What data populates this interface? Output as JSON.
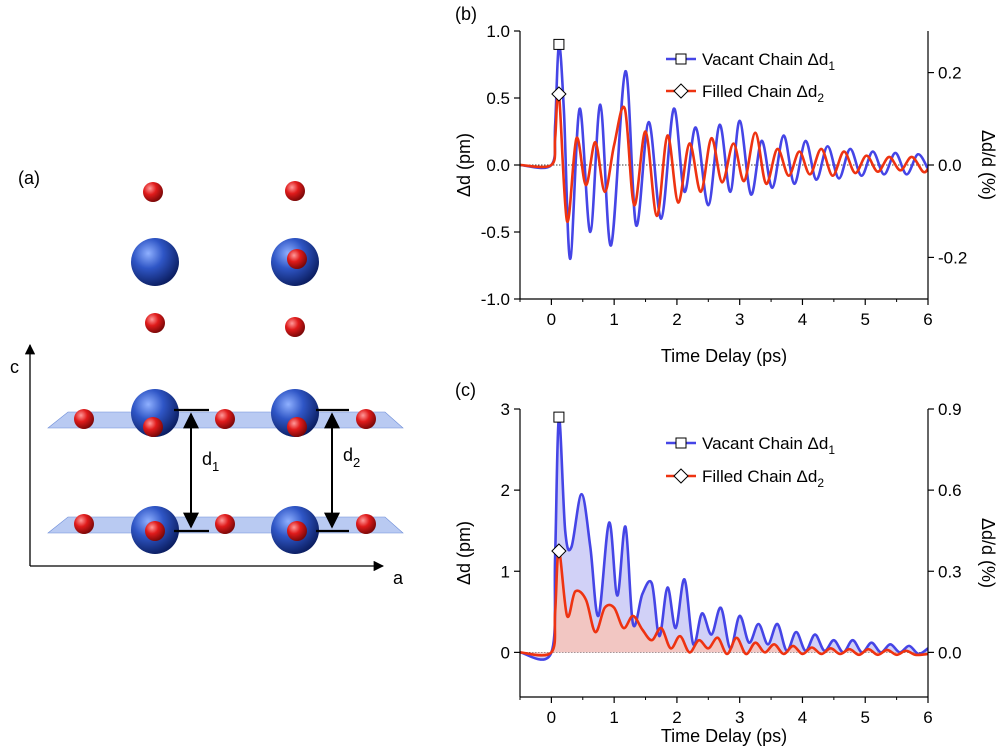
{
  "structure": {
    "panel_label": "(a)",
    "axis_c": "c",
    "axis_a": "a",
    "label_d1": {
      "main": "d",
      "sub": "1"
    },
    "label_d2": {
      "main": "d",
      "sub": "2"
    },
    "colors": {
      "big_atom": "#2b4fb5",
      "small_atom": "#e01b1b",
      "plane": "#7f9ee8"
    }
  },
  "chart_data": [
    {
      "panel": "(b)",
      "type": "line",
      "xlabel": "Time Delay (ps)",
      "ylabel": "Δd (pm)",
      "ylabel_right": "Δd/d (%)",
      "xlim": [
        -0.5,
        6
      ],
      "ylim": [
        -1.0,
        1.0
      ],
      "ylim_right": [
        -0.29,
        0.29
      ],
      "xticks": [
        "0",
        "1",
        "2",
        "3",
        "4",
        "5",
        "6"
      ],
      "yticks": [
        "-1.0",
        "-0.5",
        "0.0",
        "0.5",
        "1.0"
      ],
      "yticks_right": [
        "-0.2",
        "0.0",
        "0.2"
      ],
      "yticks_right_values": [
        -0.2,
        0.0,
        0.2
      ],
      "zero_line": true,
      "fill": false,
      "series": [
        {
          "name": "Vacant Chain Δd",
          "subscript": "1",
          "color": "#4545e6",
          "marker": "square",
          "marker_point": [
            0.12,
            0.9
          ],
          "points": [
            [
              -0.5,
              0
            ],
            [
              0.0,
              0.0
            ],
            [
              0.06,
              0.3
            ],
            [
              0.12,
              0.9
            ],
            [
              0.2,
              0.4
            ],
            [
              0.3,
              -0.7
            ],
            [
              0.45,
              0.42
            ],
            [
              0.62,
              -0.5
            ],
            [
              0.78,
              0.45
            ],
            [
              0.95,
              -0.6
            ],
            [
              1.18,
              0.7
            ],
            [
              1.35,
              -0.45
            ],
            [
              1.55,
              0.32
            ],
            [
              1.75,
              -0.4
            ],
            [
              1.95,
              0.42
            ],
            [
              2.12,
              -0.2
            ],
            [
              2.3,
              0.28
            ],
            [
              2.5,
              -0.3
            ],
            [
              2.68,
              0.3
            ],
            [
              2.85,
              -0.2
            ],
            [
              3.0,
              0.33
            ],
            [
              3.18,
              -0.22
            ],
            [
              3.35,
              0.18
            ],
            [
              3.52,
              -0.17
            ],
            [
              3.7,
              0.22
            ],
            [
              3.87,
              -0.14
            ],
            [
              4.05,
              0.18
            ],
            [
              4.22,
              -0.11
            ],
            [
              4.4,
              0.14
            ],
            [
              4.58,
              -0.1
            ],
            [
              4.76,
              0.12
            ],
            [
              4.94,
              -0.08
            ],
            [
              5.12,
              0.1
            ],
            [
              5.3,
              -0.07
            ],
            [
              5.48,
              0.09
            ],
            [
              5.66,
              -0.07
            ],
            [
              5.84,
              0.08
            ],
            [
              6.0,
              -0.03
            ]
          ]
        },
        {
          "name": "Filled Chain Δd",
          "subscript": "2",
          "color": "#ee3311",
          "marker": "diamond",
          "marker_point": [
            0.12,
            0.53
          ],
          "points": [
            [
              -0.5,
              0
            ],
            [
              0.0,
              0.0
            ],
            [
              0.06,
              0.2
            ],
            [
              0.12,
              0.53
            ],
            [
              0.25,
              -0.42
            ],
            [
              0.4,
              0.2
            ],
            [
              0.55,
              -0.15
            ],
            [
              0.7,
              0.17
            ],
            [
              0.85,
              -0.2
            ],
            [
              1.0,
              0.15
            ],
            [
              1.17,
              0.42
            ],
            [
              1.32,
              -0.3
            ],
            [
              1.5,
              0.25
            ],
            [
              1.68,
              -0.38
            ],
            [
              1.85,
              0.22
            ],
            [
              2.02,
              -0.28
            ],
            [
              2.2,
              0.16
            ],
            [
              2.38,
              -0.2
            ],
            [
              2.55,
              0.2
            ],
            [
              2.72,
              -0.13
            ],
            [
              2.9,
              0.16
            ],
            [
              3.07,
              -0.12
            ],
            [
              3.25,
              0.24
            ],
            [
              3.42,
              -0.14
            ],
            [
              3.6,
              0.12
            ],
            [
              3.78,
              -0.08
            ],
            [
              3.95,
              0.1
            ],
            [
              4.12,
              -0.07
            ],
            [
              4.3,
              0.12
            ],
            [
              4.48,
              -0.08
            ],
            [
              4.66,
              0.1
            ],
            [
              4.84,
              -0.06
            ],
            [
              5.02,
              0.07
            ],
            [
              5.2,
              -0.05
            ],
            [
              5.38,
              0.06
            ],
            [
              5.56,
              -0.04
            ],
            [
              5.74,
              0.06
            ],
            [
              5.92,
              -0.05
            ],
            [
              6.0,
              -0.03
            ]
          ]
        }
      ]
    },
    {
      "panel": "(c)",
      "type": "area",
      "xlabel": "Time Delay (ps)",
      "ylabel": "Δd (pm)",
      "ylabel_right": "Δd/d (%)",
      "xlim": [
        -0.5,
        6
      ],
      "ylim": [
        -0.55,
        3.0
      ],
      "ylim_right": [
        -0.165,
        0.9
      ],
      "xticks": [
        "0",
        "1",
        "2",
        "3",
        "4",
        "5",
        "6"
      ],
      "yticks": [
        "0",
        "1",
        "2",
        "3"
      ],
      "yticks_right": [
        "0.0",
        "0.3",
        "0.6",
        "0.9"
      ],
      "yticks_right_values": [
        0.0,
        0.3,
        0.6,
        0.9
      ],
      "zero_line": true,
      "fill": true,
      "series": [
        {
          "name": "Vacant Chain Δd",
          "subscript": "1",
          "color": "#4545e6",
          "fill_color": "#c9c9f6",
          "marker": "square",
          "marker_point": [
            0.12,
            2.9
          ],
          "points": [
            [
              -0.5,
              0
            ],
            [
              0.0,
              0.0
            ],
            [
              0.06,
              1.2
            ],
            [
              0.12,
              2.9
            ],
            [
              0.22,
              1.5
            ],
            [
              0.32,
              1.3
            ],
            [
              0.48,
              1.95
            ],
            [
              0.62,
              1.3
            ],
            [
              0.75,
              0.45
            ],
            [
              0.92,
              1.6
            ],
            [
              1.05,
              0.7
            ],
            [
              1.18,
              1.55
            ],
            [
              1.3,
              0.35
            ],
            [
              1.45,
              0.72
            ],
            [
              1.6,
              0.85
            ],
            [
              1.72,
              0.2
            ],
            [
              1.85,
              0.8
            ],
            [
              1.98,
              0.3
            ],
            [
              2.12,
              0.9
            ],
            [
              2.26,
              0.1
            ],
            [
              2.4,
              0.48
            ],
            [
              2.55,
              0.22
            ],
            [
              2.7,
              0.55
            ],
            [
              2.85,
              0.05
            ],
            [
              3.0,
              0.45
            ],
            [
              3.15,
              0.12
            ],
            [
              3.3,
              0.35
            ],
            [
              3.45,
              0.1
            ],
            [
              3.6,
              0.35
            ],
            [
              3.75,
              0.02
            ],
            [
              3.9,
              0.25
            ],
            [
              4.05,
              0.02
            ],
            [
              4.2,
              0.22
            ],
            [
              4.35,
              0.02
            ],
            [
              4.5,
              0.15
            ],
            [
              4.65,
              0.0
            ],
            [
              4.8,
              0.15
            ],
            [
              4.95,
              0.0
            ],
            [
              5.1,
              0.12
            ],
            [
              5.25,
              0.0
            ],
            [
              5.4,
              0.1
            ],
            [
              5.55,
              0.0
            ],
            [
              5.7,
              0.08
            ],
            [
              5.85,
              -0.02
            ],
            [
              6.0,
              0.05
            ]
          ]
        },
        {
          "name": "Filled Chain Δd",
          "subscript": "2",
          "color": "#ee3311",
          "fill_color": "#f8c4b8",
          "marker": "diamond",
          "marker_point": [
            0.12,
            1.25
          ],
          "points": [
            [
              -0.5,
              0
            ],
            [
              0.0,
              0.0
            ],
            [
              0.06,
              0.5
            ],
            [
              0.12,
              1.25
            ],
            [
              0.25,
              0.45
            ],
            [
              0.38,
              0.75
            ],
            [
              0.55,
              0.65
            ],
            [
              0.7,
              0.25
            ],
            [
              0.85,
              0.55
            ],
            [
              1.0,
              0.55
            ],
            [
              1.15,
              0.3
            ],
            [
              1.3,
              0.45
            ],
            [
              1.45,
              0.28
            ],
            [
              1.6,
              0.15
            ],
            [
              1.75,
              0.3
            ],
            [
              1.9,
              0.05
            ],
            [
              2.05,
              0.2
            ],
            [
              2.2,
              0.0
            ],
            [
              2.35,
              0.15
            ],
            [
              2.5,
              0.05
            ],
            [
              2.65,
              0.18
            ],
            [
              2.8,
              -0.02
            ],
            [
              2.95,
              0.18
            ],
            [
              3.1,
              -0.02
            ],
            [
              3.25,
              0.12
            ],
            [
              3.4,
              0.0
            ],
            [
              3.55,
              0.1
            ],
            [
              3.7,
              -0.02
            ],
            [
              3.85,
              0.08
            ],
            [
              4.0,
              -0.02
            ],
            [
              4.15,
              0.06
            ],
            [
              4.3,
              -0.02
            ],
            [
              4.45,
              0.05
            ],
            [
              4.6,
              -0.02
            ],
            [
              4.75,
              0.04
            ],
            [
              4.9,
              -0.03
            ],
            [
              5.05,
              0.04
            ],
            [
              5.2,
              -0.03
            ],
            [
              5.35,
              0.03
            ],
            [
              5.5,
              -0.03
            ],
            [
              5.65,
              0.02
            ],
            [
              5.8,
              -0.03
            ],
            [
              6.0,
              -0.02
            ]
          ]
        }
      ]
    }
  ]
}
